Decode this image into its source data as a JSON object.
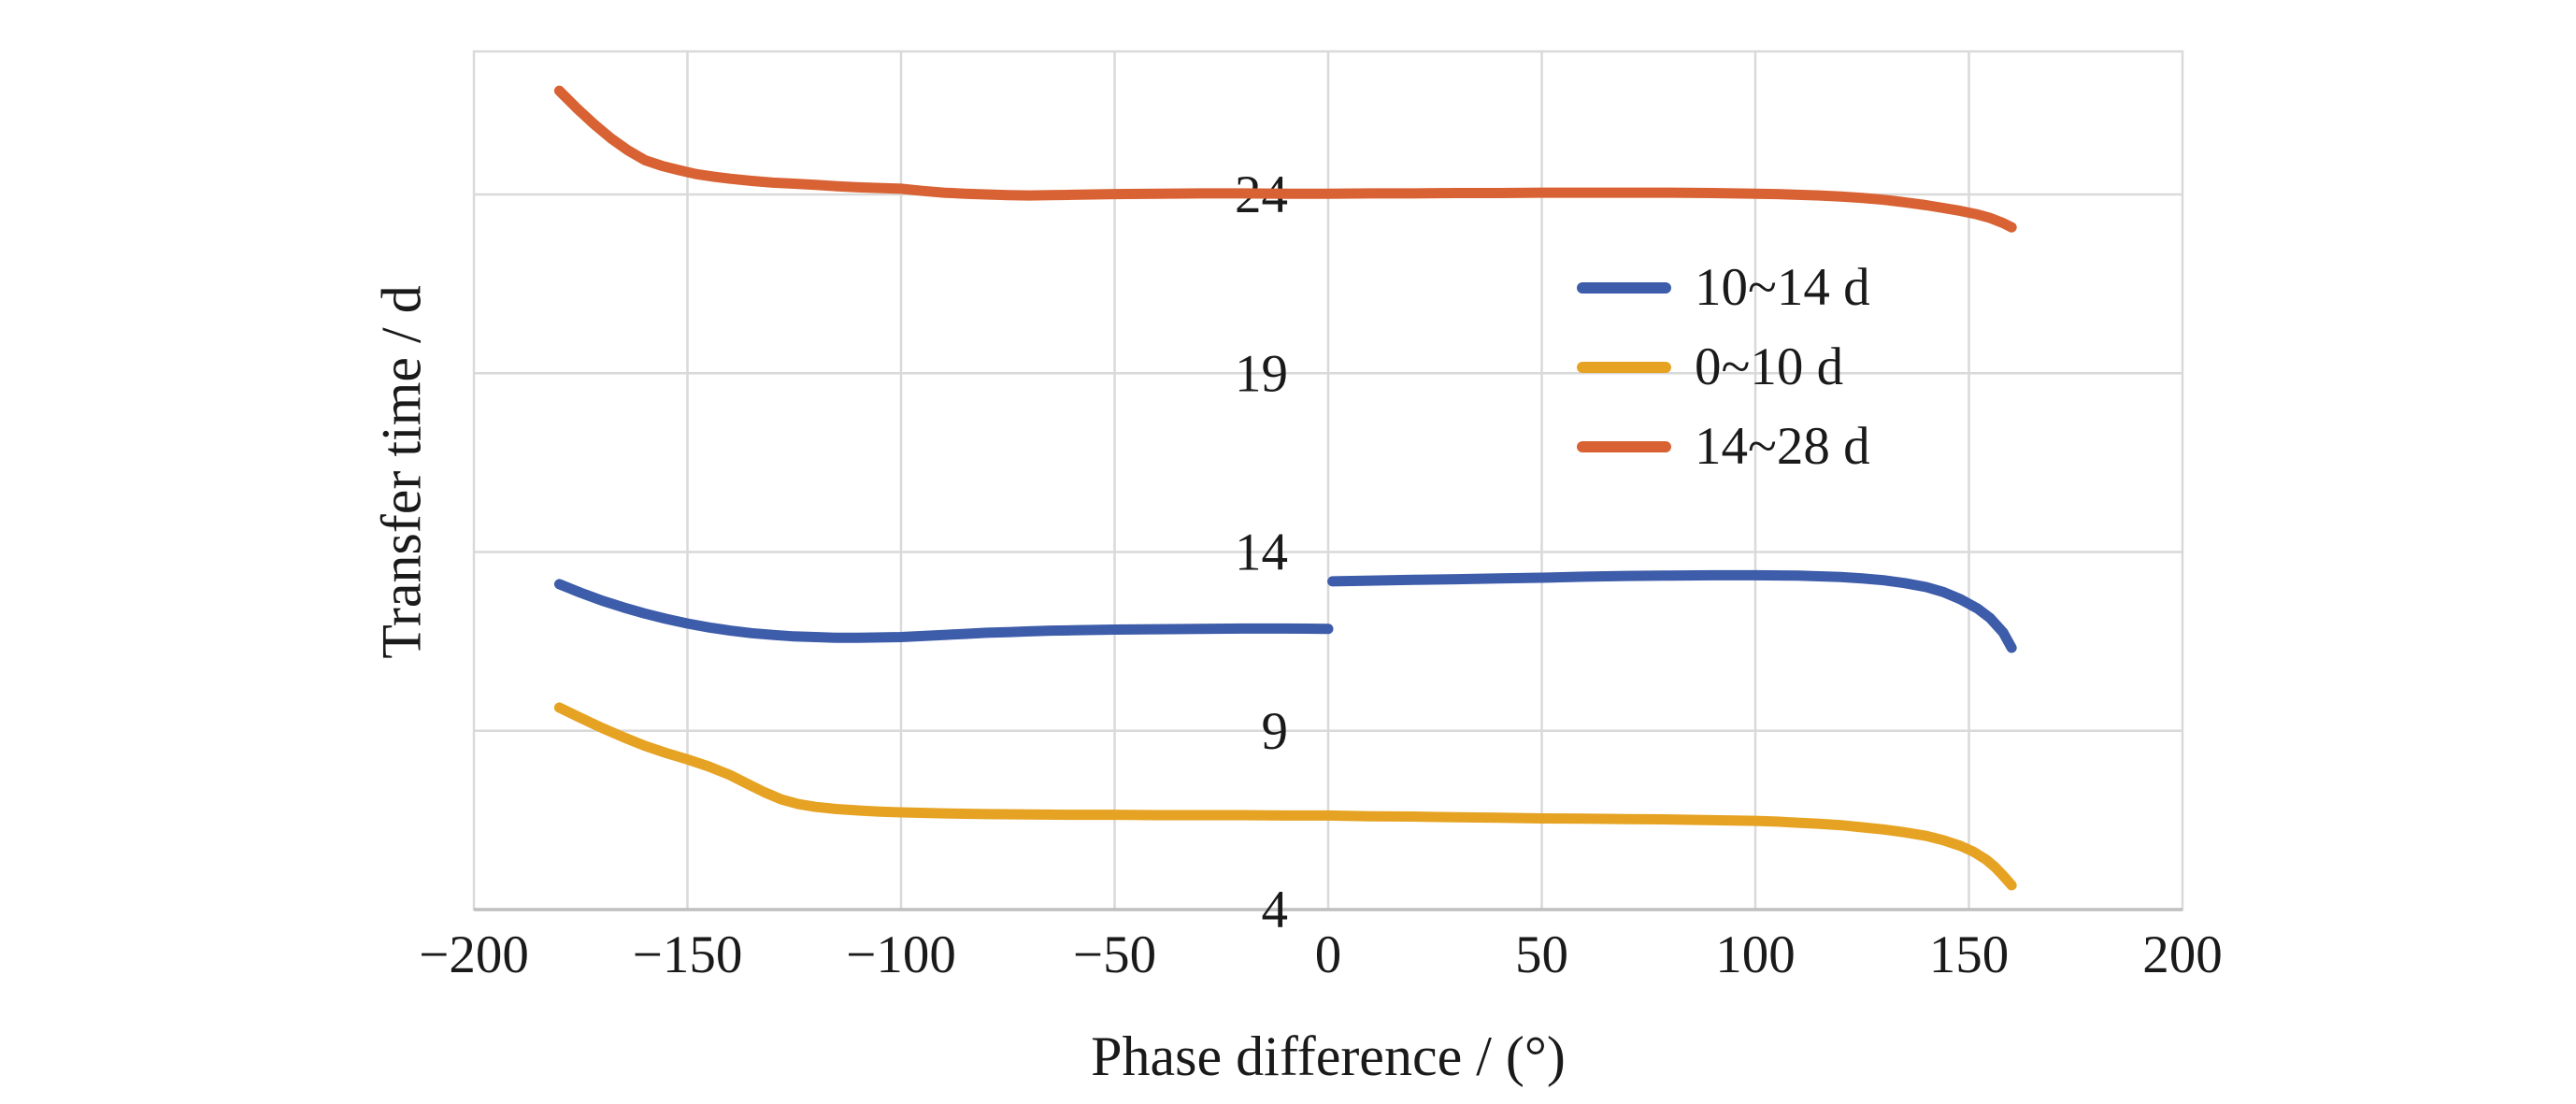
{
  "chart_data": {
    "type": "line",
    "title": "",
    "grid": true,
    "legend_position": "inside-upper-right",
    "x_axis": {
      "title": "Phase difference / (°)",
      "min": -200,
      "max": 200,
      "ticks": [
        {
          "v": -200,
          "label": "−200"
        },
        {
          "v": -150,
          "label": "−150"
        },
        {
          "v": -100,
          "label": "−100"
        },
        {
          "v": -50,
          "label": "−50"
        },
        {
          "v": 0,
          "label": "0"
        },
        {
          "v": 50,
          "label": "50"
        },
        {
          "v": 100,
          "label": "100"
        },
        {
          "v": 150,
          "label": "150"
        },
        {
          "v": 200,
          "label": "200"
        }
      ]
    },
    "y_axis": {
      "title": "Transfer time / d",
      "min": 4,
      "max": 28,
      "ticks": [
        {
          "v": 4,
          "label": "4"
        },
        {
          "v": 9,
          "label": "9"
        },
        {
          "v": 14,
          "label": "14"
        },
        {
          "v": 19,
          "label": "19"
        },
        {
          "v": 24,
          "label": "24"
        }
      ]
    },
    "colors": {
      "gridline": "#d9d9d9",
      "axis_line": "#bfbfbf",
      "text": "#1a1a1a"
    },
    "series": [
      {
        "name": "10~14 d",
        "color": "#3d5ca9",
        "segments": [
          [
            [
              -180,
              13.1
            ],
            [
              -175,
              12.86
            ],
            [
              -170,
              12.64
            ],
            [
              -165,
              12.45
            ],
            [
              -160,
              12.28
            ],
            [
              -155,
              12.13
            ],
            [
              -150,
              12.0
            ],
            [
              -145,
              11.89
            ],
            [
              -140,
              11.8
            ],
            [
              -135,
              11.73
            ],
            [
              -130,
              11.68
            ],
            [
              -125,
              11.64
            ],
            [
              -120,
              11.62
            ],
            [
              -115,
              11.6
            ],
            [
              -110,
              11.6
            ],
            [
              -105,
              11.61
            ],
            [
              -100,
              11.62
            ],
            [
              -95,
              11.65
            ],
            [
              -90,
              11.68
            ],
            [
              -85,
              11.71
            ],
            [
              -80,
              11.74
            ],
            [
              -75,
              11.76
            ],
            [
              -70,
              11.78
            ],
            [
              -65,
              11.8
            ],
            [
              -60,
              11.81
            ],
            [
              -50,
              11.83
            ],
            [
              -40,
              11.84
            ],
            [
              -30,
              11.85
            ],
            [
              -20,
              11.86
            ],
            [
              -10,
              11.86
            ],
            [
              0,
              11.85
            ]
          ],
          [
            [
              1,
              13.18
            ],
            [
              10,
              13.2
            ],
            [
              20,
              13.22
            ],
            [
              30,
              13.24
            ],
            [
              40,
              13.26
            ],
            [
              50,
              13.28
            ],
            [
              60,
              13.31
            ],
            [
              70,
              13.33
            ],
            [
              80,
              13.34
            ],
            [
              90,
              13.35
            ],
            [
              100,
              13.35
            ],
            [
              110,
              13.34
            ],
            [
              115,
              13.32
            ],
            [
              120,
              13.3
            ],
            [
              125,
              13.26
            ],
            [
              130,
              13.21
            ],
            [
              135,
              13.13
            ],
            [
              140,
              13.02
            ],
            [
              144,
              12.88
            ],
            [
              148,
              12.68
            ],
            [
              152,
              12.42
            ],
            [
              155,
              12.15
            ],
            [
              158,
              11.75
            ],
            [
              160,
              11.32
            ]
          ]
        ]
      },
      {
        "name": "0~10 d",
        "color": "#e6a323",
        "segments": [
          [
            [
              -180,
              9.65
            ],
            [
              -175,
              9.36
            ],
            [
              -170,
              9.08
            ],
            [
              -165,
              8.82
            ],
            [
              -160,
              8.58
            ],
            [
              -155,
              8.38
            ],
            [
              -150,
              8.2
            ],
            [
              -145,
              8.0
            ],
            [
              -140,
              7.76
            ],
            [
              -136,
              7.52
            ],
            [
              -132,
              7.28
            ],
            [
              -128,
              7.08
            ],
            [
              -124,
              6.95
            ],
            [
              -120,
              6.87
            ],
            [
              -115,
              6.81
            ],
            [
              -110,
              6.77
            ],
            [
              -105,
              6.74
            ],
            [
              -100,
              6.72
            ],
            [
              -90,
              6.69
            ],
            [
              -80,
              6.67
            ],
            [
              -70,
              6.66
            ],
            [
              -60,
              6.65
            ],
            [
              -50,
              6.65
            ],
            [
              -40,
              6.64
            ],
            [
              -30,
              6.64
            ],
            [
              -20,
              6.64
            ],
            [
              -10,
              6.63
            ],
            [
              0,
              6.63
            ],
            [
              10,
              6.61
            ],
            [
              20,
              6.6
            ],
            [
              30,
              6.58
            ],
            [
              40,
              6.57
            ],
            [
              50,
              6.55
            ],
            [
              60,
              6.54
            ],
            [
              70,
              6.53
            ],
            [
              80,
              6.52
            ],
            [
              90,
              6.5
            ],
            [
              100,
              6.48
            ],
            [
              105,
              6.46
            ],
            [
              110,
              6.43
            ],
            [
              115,
              6.4
            ],
            [
              120,
              6.36
            ],
            [
              125,
              6.3
            ],
            [
              130,
              6.24
            ],
            [
              135,
              6.16
            ],
            [
              140,
              6.06
            ],
            [
              144,
              5.94
            ],
            [
              148,
              5.78
            ],
            [
              151,
              5.62
            ],
            [
              154,
              5.4
            ],
            [
              156,
              5.2
            ],
            [
              158,
              4.95
            ],
            [
              160,
              4.68
            ]
          ]
        ]
      },
      {
        "name": "14~28 d",
        "color": "#d86233",
        "segments": [
          [
            [
              -180,
              26.9
            ],
            [
              -176,
              26.42
            ],
            [
              -172,
              25.98
            ],
            [
              -168,
              25.58
            ],
            [
              -164,
              25.24
            ],
            [
              -160,
              24.96
            ],
            [
              -156,
              24.8
            ],
            [
              -152,
              24.68
            ],
            [
              -148,
              24.57
            ],
            [
              -144,
              24.5
            ],
            [
              -140,
              24.44
            ],
            [
              -135,
              24.38
            ],
            [
              -130,
              24.33
            ],
            [
              -125,
              24.3
            ],
            [
              -120,
              24.27
            ],
            [
              -115,
              24.23
            ],
            [
              -110,
              24.2
            ],
            [
              -105,
              24.18
            ],
            [
              -100,
              24.16
            ],
            [
              -95,
              24.1
            ],
            [
              -90,
              24.05
            ],
            [
              -85,
              24.02
            ],
            [
              -80,
              24.0
            ],
            [
              -75,
              23.98
            ],
            [
              -70,
              23.97
            ],
            [
              -65,
              23.98
            ],
            [
              -60,
              23.99
            ],
            [
              -55,
              24.0
            ],
            [
              -50,
              24.01
            ],
            [
              -40,
              24.02
            ],
            [
              -30,
              24.03
            ],
            [
              -20,
              24.03
            ],
            [
              -10,
              24.02
            ],
            [
              0,
              24.02
            ],
            [
              10,
              24.03
            ],
            [
              20,
              24.03
            ],
            [
              30,
              24.04
            ],
            [
              40,
              24.04
            ],
            [
              50,
              24.05
            ],
            [
              60,
              24.05
            ],
            [
              70,
              24.05
            ],
            [
              80,
              24.05
            ],
            [
              90,
              24.04
            ],
            [
              100,
              24.02
            ],
            [
              105,
              24.01
            ],
            [
              110,
              23.99
            ],
            [
              115,
              23.97
            ],
            [
              120,
              23.94
            ],
            [
              125,
              23.9
            ],
            [
              130,
              23.85
            ],
            [
              135,
              23.78
            ],
            [
              140,
              23.7
            ],
            [
              144,
              23.62
            ],
            [
              148,
              23.54
            ],
            [
              152,
              23.44
            ],
            [
              155,
              23.34
            ],
            [
              158,
              23.2
            ],
            [
              160,
              23.08
            ]
          ]
        ]
      }
    ]
  }
}
